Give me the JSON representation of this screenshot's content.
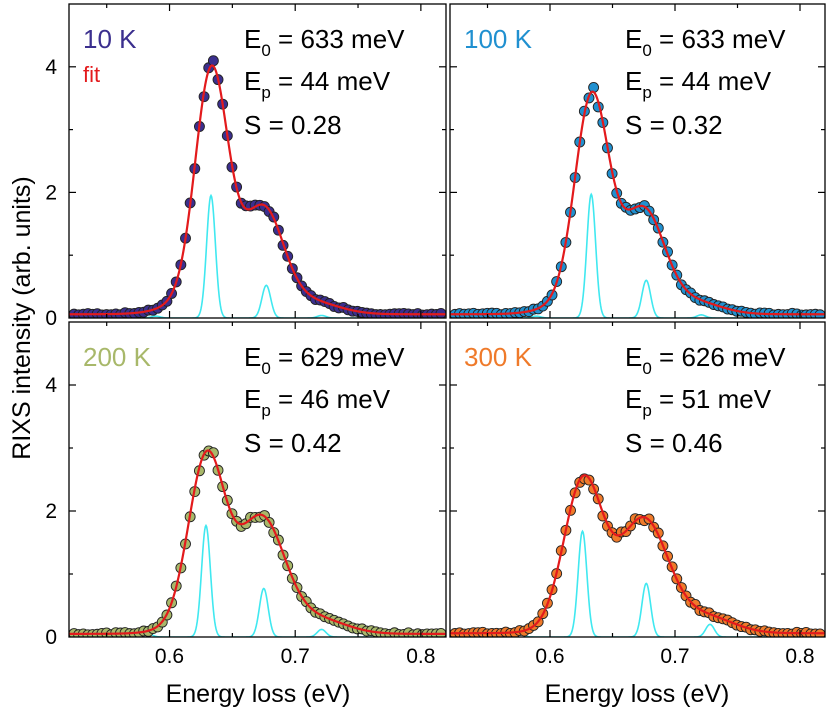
{
  "chart_data": {
    "type": "scatter",
    "xlabel": "Energy loss (eV)",
    "ylabel": "RIXS intensity (arb. units)",
    "xlim": [
      0.52,
      0.82
    ],
    "ylim": [
      0,
      5
    ],
    "xticks": [
      "0.6",
      "0.7",
      "0.8"
    ],
    "xtick_values": [
      0.6,
      0.7,
      0.8
    ],
    "yticks": [
      "0",
      "2",
      "4"
    ],
    "ytick_values": [
      0,
      2,
      4
    ],
    "fit_color": "#e31a1c",
    "component_color": "#40e8f0",
    "panels": [
      {
        "temperature": "10 K",
        "color": "#3b2f8e",
        "legend_fit": "fit",
        "annotations": {
          "e0": "E0 = 633 meV",
          "e0_main": "E",
          "e0_sub": "0",
          "e0_val": " = 633 meV",
          "ep_main": "E",
          "ep_sub": "p",
          "ep_val": " = 44 meV",
          "s": "S  = 0.28"
        },
        "model": {
          "main_center": 0.633,
          "main_sigma": 0.0125,
          "main_amp": 3.25,
          "side_center": 0.677,
          "side_sigma": 0.014,
          "side_amp": 1.0,
          "tail_center": 0.72,
          "tail_sigma": 0.02,
          "tail_amp": 0.12,
          "background": 0.06,
          "comp_sigma": 0.0035,
          "comp_amps": [
            0.03,
            1.95,
            0.52,
            0.04
          ],
          "comp_centers": [
            0.589,
            0.633,
            0.677,
            0.721
          ]
        }
      },
      {
        "temperature": "100 K",
        "color": "#2090d0",
        "annotations": {
          "e0_main": "E",
          "e0_sub": "0",
          "e0_val": " = 633 meV",
          "ep_main": "E",
          "ep_sub": "p",
          "ep_val": " = 44 meV",
          "s": "S  = 0.32"
        },
        "model": {
          "main_center": 0.633,
          "main_sigma": 0.013,
          "main_amp": 2.9,
          "side_center": 0.677,
          "side_sigma": 0.015,
          "side_amp": 1.05,
          "tail_center": 0.72,
          "tail_sigma": 0.02,
          "tail_amp": 0.14,
          "background": 0.06,
          "comp_sigma": 0.0035,
          "comp_amps": [
            0.03,
            1.97,
            0.6,
            0.05
          ],
          "comp_centers": [
            0.589,
            0.633,
            0.677,
            0.721
          ]
        }
      },
      {
        "temperature": "200 K",
        "color": "#a8b86a",
        "annotations": {
          "e0_main": "E",
          "e0_sub": "0",
          "e0_val": " = 629 meV",
          "ep_main": "E",
          "ep_sub": "p",
          "ep_val": " = 46 meV",
          "s": "S  = 0.42"
        },
        "model": {
          "main_center": 0.629,
          "main_sigma": 0.014,
          "main_amp": 2.4,
          "side_center": 0.675,
          "side_sigma": 0.017,
          "side_amp": 1.3,
          "tail_center": 0.72,
          "tail_sigma": 0.022,
          "tail_amp": 0.2,
          "background": 0.05,
          "comp_sigma": 0.0035,
          "comp_amps": [
            0.05,
            1.77,
            0.77,
            0.12
          ],
          "comp_centers": [
            0.583,
            0.629,
            0.675,
            0.721
          ]
        }
      },
      {
        "temperature": "300 K",
        "color": "#ef7a2a",
        "annotations": {
          "e0_main": "E",
          "e0_sub": "0",
          "e0_val": " = 626 meV",
          "ep_main": "E",
          "ep_sub": "p",
          "ep_val": " = 51 meV",
          "s": "S  = 0.46"
        },
        "model": {
          "main_center": 0.626,
          "main_sigma": 0.015,
          "main_amp": 2.1,
          "side_center": 0.677,
          "side_sigma": 0.018,
          "side_amp": 1.35,
          "tail_center": 0.725,
          "tail_sigma": 0.022,
          "tail_amp": 0.25,
          "background": 0.06,
          "comp_sigma": 0.0035,
          "comp_amps": [
            0.06,
            1.68,
            0.85,
            0.2
          ],
          "comp_centers": [
            0.575,
            0.626,
            0.677,
            0.728
          ]
        }
      }
    ],
    "points_per_panel": 80
  }
}
